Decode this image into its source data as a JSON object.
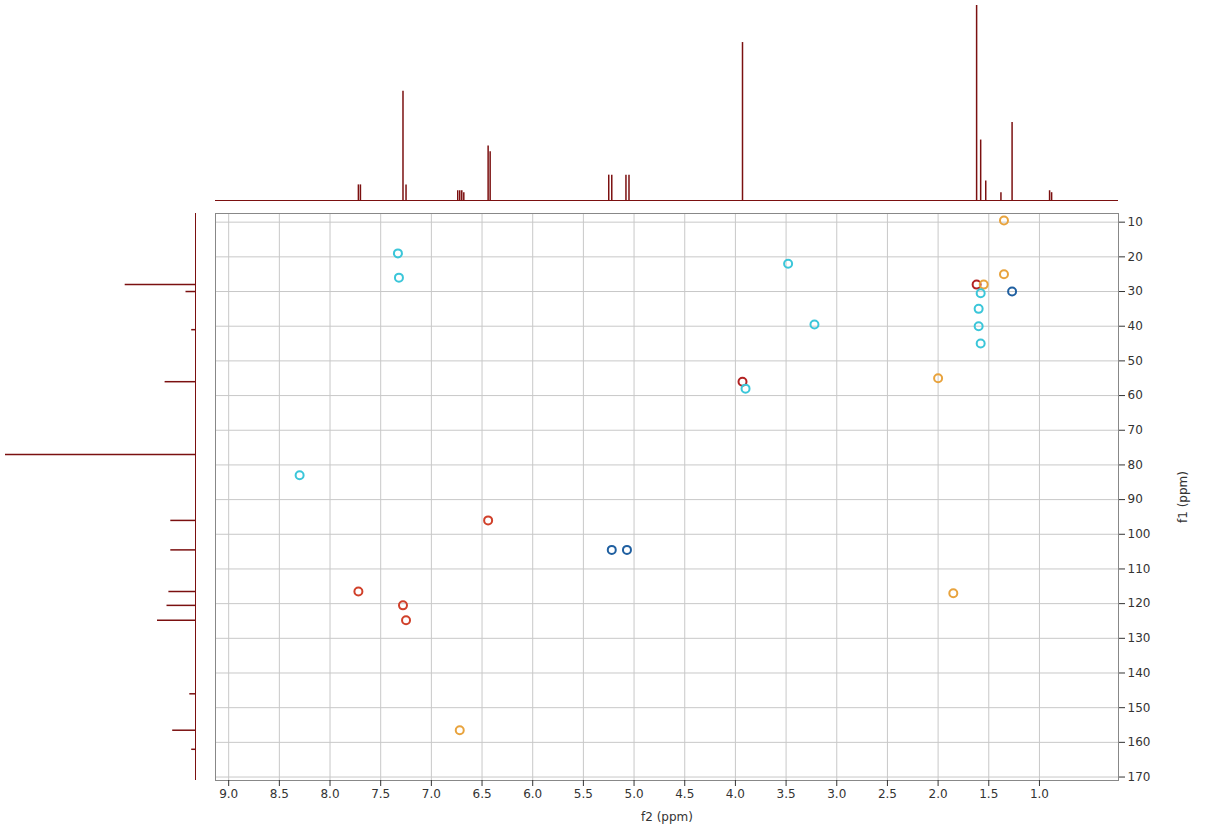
{
  "chart_data": {
    "type": "scatter",
    "xlabel": "f2 (ppm)",
    "ylabel": "f1 (ppm)",
    "xlim": [
      9.13,
      0.22
    ],
    "ylim": [
      7.5,
      171
    ],
    "reverse_y": true,
    "xticks": [
      {
        "value": 9,
        "label": "9.0"
      },
      8.5,
      {
        "value": 8,
        "label": "8.0"
      },
      7.5,
      {
        "value": 7,
        "label": "7.0"
      },
      6.5,
      {
        "value": 6,
        "label": "6.0"
      },
      5.5,
      {
        "value": 5,
        "label": "5.0"
      },
      4.5,
      {
        "value": 4,
        "label": "4.0"
      },
      3.5,
      {
        "value": 3,
        "label": "3.0"
      },
      2.5,
      {
        "value": 2,
        "label": "2.0"
      },
      1.5,
      {
        "value": 1,
        "label": "1.0"
      }
    ],
    "yticks": [
      10,
      20,
      30,
      40,
      50,
      60,
      70,
      80,
      90,
      100,
      110,
      120,
      130,
      140,
      150,
      160,
      170
    ],
    "grid": true,
    "x": [
      7.72,
      7.28,
      7.25,
      6.44,
      6.72,
      5.22,
      5.07,
      3.93,
      1.62,
      1.55,
      1.27,
      1.58,
      1.6,
      1.6,
      1.58,
      1.35,
      1.35,
      8.3,
      7.33,
      7.32,
      3.48,
      3.22,
      1.85,
      2.0,
      3.9
    ],
    "y": [
      116.5,
      120.5,
      124.8,
      96.0,
      156.5,
      104.5,
      104.5,
      56.0,
      28.0,
      28.0,
      30.0,
      30.5,
      35.0,
      40.0,
      45.0,
      25.0,
      9.5,
      83.0,
      19.0,
      26.0,
      22.0,
      39.5,
      117.0,
      55.0,
      58.0
    ],
    "colors": [
      "#d0402a",
      "#d0402a",
      "#d0402a",
      "#d0402a",
      "#e8a33d",
      "#1f5fa0",
      "#1f5fa0",
      "#b22222",
      "#b22222",
      "#e8a33d",
      "#1f5fa0",
      "#3bc6d9",
      "#3bc6d9",
      "#3bc6d9",
      "#3bc6d9",
      "#e8a33d",
      "#e8a33d",
      "#3bc6d9",
      "#3bc6d9",
      "#3bc6d9",
      "#3bc6d9",
      "#3bc6d9",
      "#e8a33d",
      "#e8a33d",
      "#3bc6d9"
    ],
    "x_projection": {
      "shift": [
        7.72,
        7.7,
        7.28,
        7.25,
        6.74,
        6.72,
        6.7,
        6.68,
        6.44,
        6.42,
        5.25,
        5.22,
        5.08,
        5.05,
        3.93,
        1.62,
        1.58,
        1.53,
        1.38,
        1.27,
        0.9,
        0.88
      ],
      "intensity": [
        8,
        8,
        56,
        8,
        5,
        5,
        5,
        4,
        28,
        25,
        13,
        13,
        13,
        13,
        81,
        100,
        31,
        10,
        4,
        40,
        5,
        4
      ],
      "color": "#7b1010"
    },
    "y_projection": {
      "shift": [
        28.0,
        30.0,
        41.0,
        56.0,
        77.0,
        96.0,
        104.5,
        116.5,
        120.5,
        124.8,
        146.0,
        156.5,
        162.0
      ],
      "intensity": [
        37,
        5,
        2,
        16,
        100,
        13,
        13,
        14,
        15,
        20,
        3,
        12,
        2
      ],
      "color": "#7b1010"
    }
  }
}
